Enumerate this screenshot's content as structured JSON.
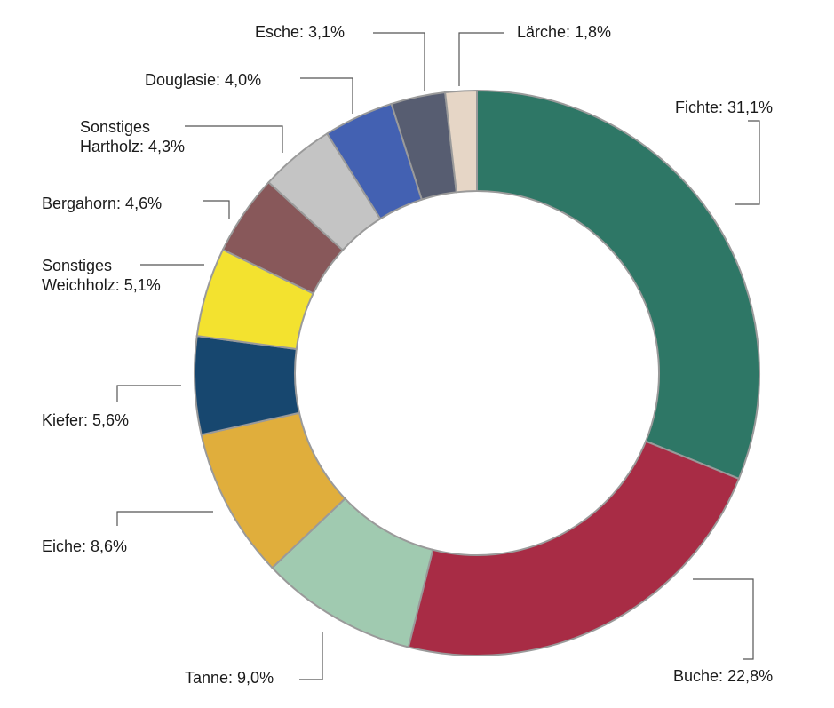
{
  "chart_data": {
    "type": "pie",
    "variant": "donut",
    "title": "",
    "slices": [
      {
        "name": "Fichte",
        "value": 31.1,
        "label": "Fichte: 31,1%",
        "color": "#2e7766"
      },
      {
        "name": "Buche",
        "value": 22.8,
        "label": "Buche: 22,8%",
        "color": "#a82c45"
      },
      {
        "name": "Tanne",
        "value": 9.0,
        "label": "Tanne: 9,0%",
        "color": "#a0cab0"
      },
      {
        "name": "Eiche",
        "value": 8.6,
        "label": "Eiche: 8,6%",
        "color": "#e0ae3c"
      },
      {
        "name": "Kiefer",
        "value": 5.6,
        "label": "Kiefer: 5,6%",
        "color": "#17476f"
      },
      {
        "name": "Sonstiges Weichholz",
        "value": 5.1,
        "label_line1": "Sonstiges",
        "label_line2": "Weichholz: 5,1%",
        "color": "#f3e22f"
      },
      {
        "name": "Bergahorn",
        "value": 4.6,
        "label": "Bergahorn: 4,6%",
        "color": "#88585a"
      },
      {
        "name": "Sonstiges Hartholz",
        "value": 4.3,
        "label_line1": "Sonstiges",
        "label_line2": "Hartholz: 4,3%",
        "color": "#c4c4c4"
      },
      {
        "name": "Douglasie",
        "value": 4.0,
        "label": "Douglasie: 4,0%",
        "color": "#4361b2"
      },
      {
        "name": "Esche",
        "value": 3.1,
        "label": "Esche: 3,1%",
        "color": "#575d71"
      },
      {
        "name": "Lärche",
        "value": 1.8,
        "label": "Lärche: 1,8%",
        "color": "#e6d6c6"
      }
    ],
    "legend": "none",
    "start_angle": "top, clockwise"
  }
}
